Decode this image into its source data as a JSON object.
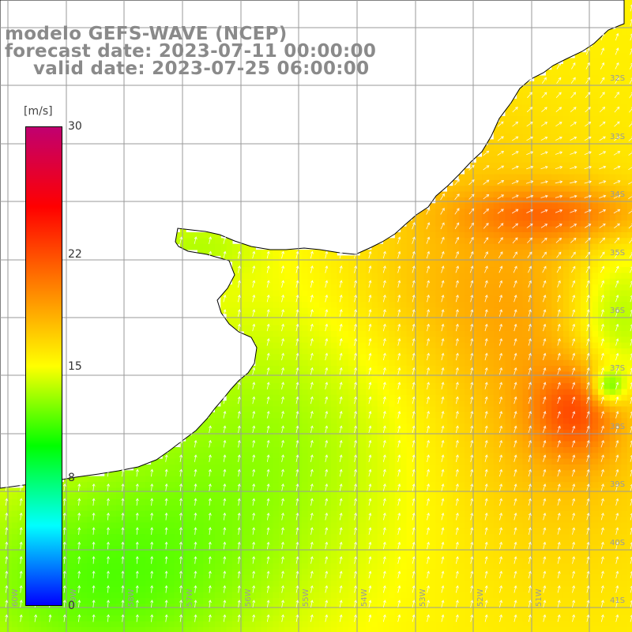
{
  "header": {
    "model": "modelo GEFS-WAVE (NCEP)",
    "forecast": "forecast date: 2023-07-11 00:00:00",
    "valid": "valid date: 2023-07-25 06:00:00"
  },
  "colorbar": {
    "unit": "[m/s]",
    "ticks": [
      "30",
      "22",
      "15",
      "8",
      "0"
    ],
    "range": [
      0,
      30
    ],
    "gradient": [
      "#0000ff",
      "#00ffff",
      "#00ff00",
      "#ffff00",
      "#ff8000",
      "#ff0000",
      "#c00070"
    ]
  },
  "axes": {
    "lat_labels": [
      "32S",
      "33S",
      "34S",
      "35S",
      "36S",
      "37S",
      "38S",
      "39S",
      "40S",
      "41S"
    ],
    "lon_labels": [
      "60W",
      "59W",
      "58W",
      "57W",
      "56W",
      "55W",
      "54W",
      "53W",
      "52W",
      "51W"
    ],
    "lat_range": [
      -41,
      -31
    ],
    "lon_range": [
      -61,
      -50
    ],
    "grid": true
  },
  "colors": {
    "land": "#ffffff",
    "coastline": "#000000",
    "gridline": "#9a9a9a",
    "wind_arrow": "#ffffff",
    "header_text": "#8a8a8a"
  },
  "icons": {
    "arrows": "wind-direction-arrow-icon"
  }
}
